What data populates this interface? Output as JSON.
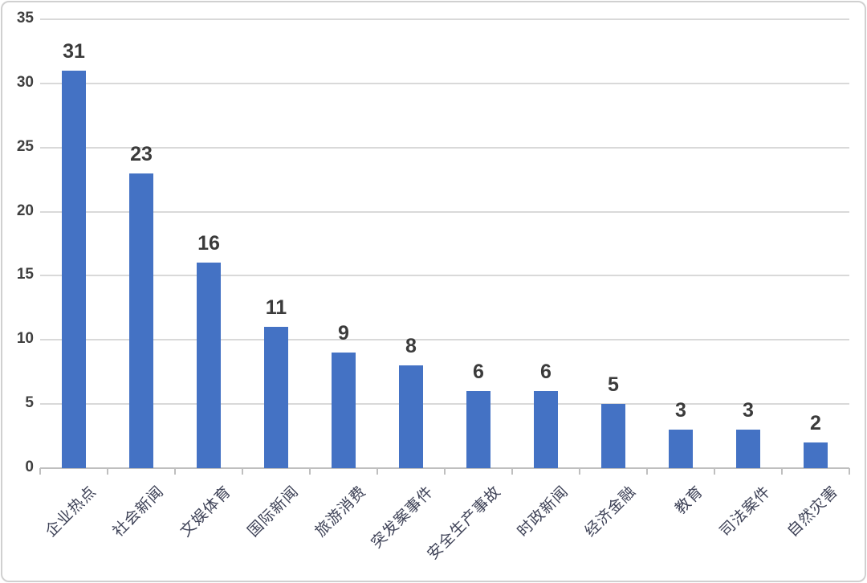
{
  "chart_data": {
    "type": "bar",
    "categories": [
      "企业热点",
      "社会新闻",
      "文娱体育",
      "国际新闻",
      "旅游消费",
      "突发案事件",
      "安全生产事故",
      "时政新闻",
      "经济金融",
      "教育",
      "司法案件",
      "自然灾害"
    ],
    "values": [
      31,
      23,
      16,
      11,
      9,
      8,
      6,
      6,
      5,
      3,
      3,
      2
    ],
    "title": "",
    "xlabel": "",
    "ylabel": "",
    "ylim": [
      0,
      35
    ],
    "yticks": [
      0,
      5,
      10,
      15,
      20,
      25,
      30,
      35
    ],
    "grid": true,
    "legend": false,
    "data_labels": true,
    "colors": {
      "bar": "#4472C4",
      "value_label": "#3b3b3b",
      "ytick_label": "#404040",
      "category_label": "#3e4257",
      "gridline": "#d9d9d9",
      "axis_line": "#bfbfbf",
      "background": "#ffffff",
      "frame_border": "#d0d0d0"
    }
  }
}
